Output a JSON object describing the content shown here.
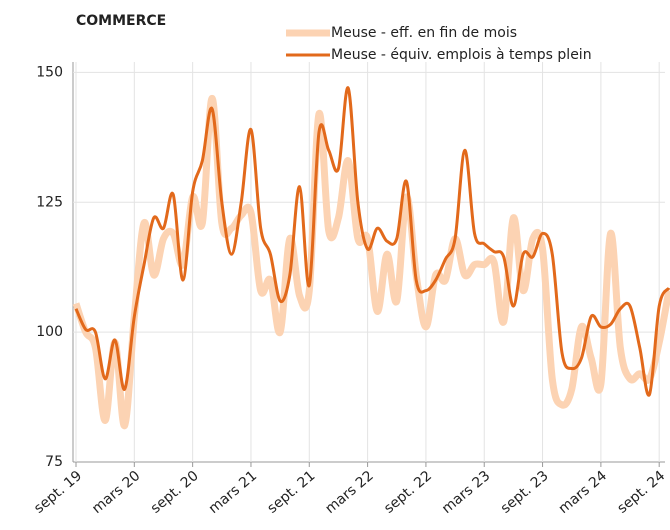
{
  "chart_data": {
    "type": "line",
    "title": "COMMERCE",
    "categories": [
      "sept. 19",
      null,
      null,
      null,
      null,
      null,
      "mars 20",
      null,
      null,
      null,
      null,
      null,
      "sept. 20",
      null,
      null,
      null,
      null,
      null,
      "mars 21",
      null,
      null,
      null,
      null,
      null,
      "sept. 21",
      null,
      null,
      null,
      null,
      null,
      "mars 22",
      null,
      null,
      null,
      null,
      null,
      "sept. 22",
      null,
      null,
      null,
      null,
      null,
      "mars 23",
      null,
      null,
      null,
      null,
      null,
      "sept. 23",
      null,
      null,
      null,
      null,
      null,
      "mars 24",
      null,
      null,
      null,
      null,
      null,
      "sept. 24",
      null
    ],
    "series": [
      {
        "name": "Meuse - eff. en fin de mois",
        "color": "#fcd3b3",
        "values": [
          105.5,
          100,
          97,
          83,
          98,
          82,
          103,
          121,
          111,
          118,
          119,
          113,
          126,
          121,
          145,
          121,
          120,
          122.5,
          123,
          108,
          110,
          100,
          118,
          107,
          108,
          142,
          119.5,
          122,
          133,
          118,
          118,
          104,
          115,
          106,
          126,
          111,
          101,
          111,
          110,
          118,
          111,
          113,
          113,
          113.5,
          102,
          122,
          108,
          118,
          116,
          91,
          86,
          89,
          101,
          95,
          90,
          119,
          97,
          91,
          92,
          91,
          98,
          108
        ]
      },
      {
        "name": "Meuse - équiv. emplois à temps plein",
        "color": "#e2691b",
        "values": [
          104.5,
          100.5,
          100,
          91,
          98.5,
          89,
          103,
          113,
          122,
          120,
          126.5,
          110,
          127,
          133,
          143,
          125,
          115,
          125,
          139,
          120,
          115,
          106,
          111,
          128,
          109,
          138.5,
          135,
          131.5,
          147,
          125,
          116,
          120,
          117.5,
          118,
          129,
          110,
          108,
          110,
          114,
          118,
          135,
          119,
          117,
          115.5,
          114.5,
          105,
          115,
          114.5,
          119,
          115,
          96,
          93,
          95,
          103,
          101,
          101.5,
          104.5,
          105,
          97,
          88,
          105,
          108.5
        ]
      }
    ],
    "ylim": [
      75,
      152
    ],
    "yticks": [
      75,
      100,
      125,
      150
    ],
    "grid": true
  }
}
